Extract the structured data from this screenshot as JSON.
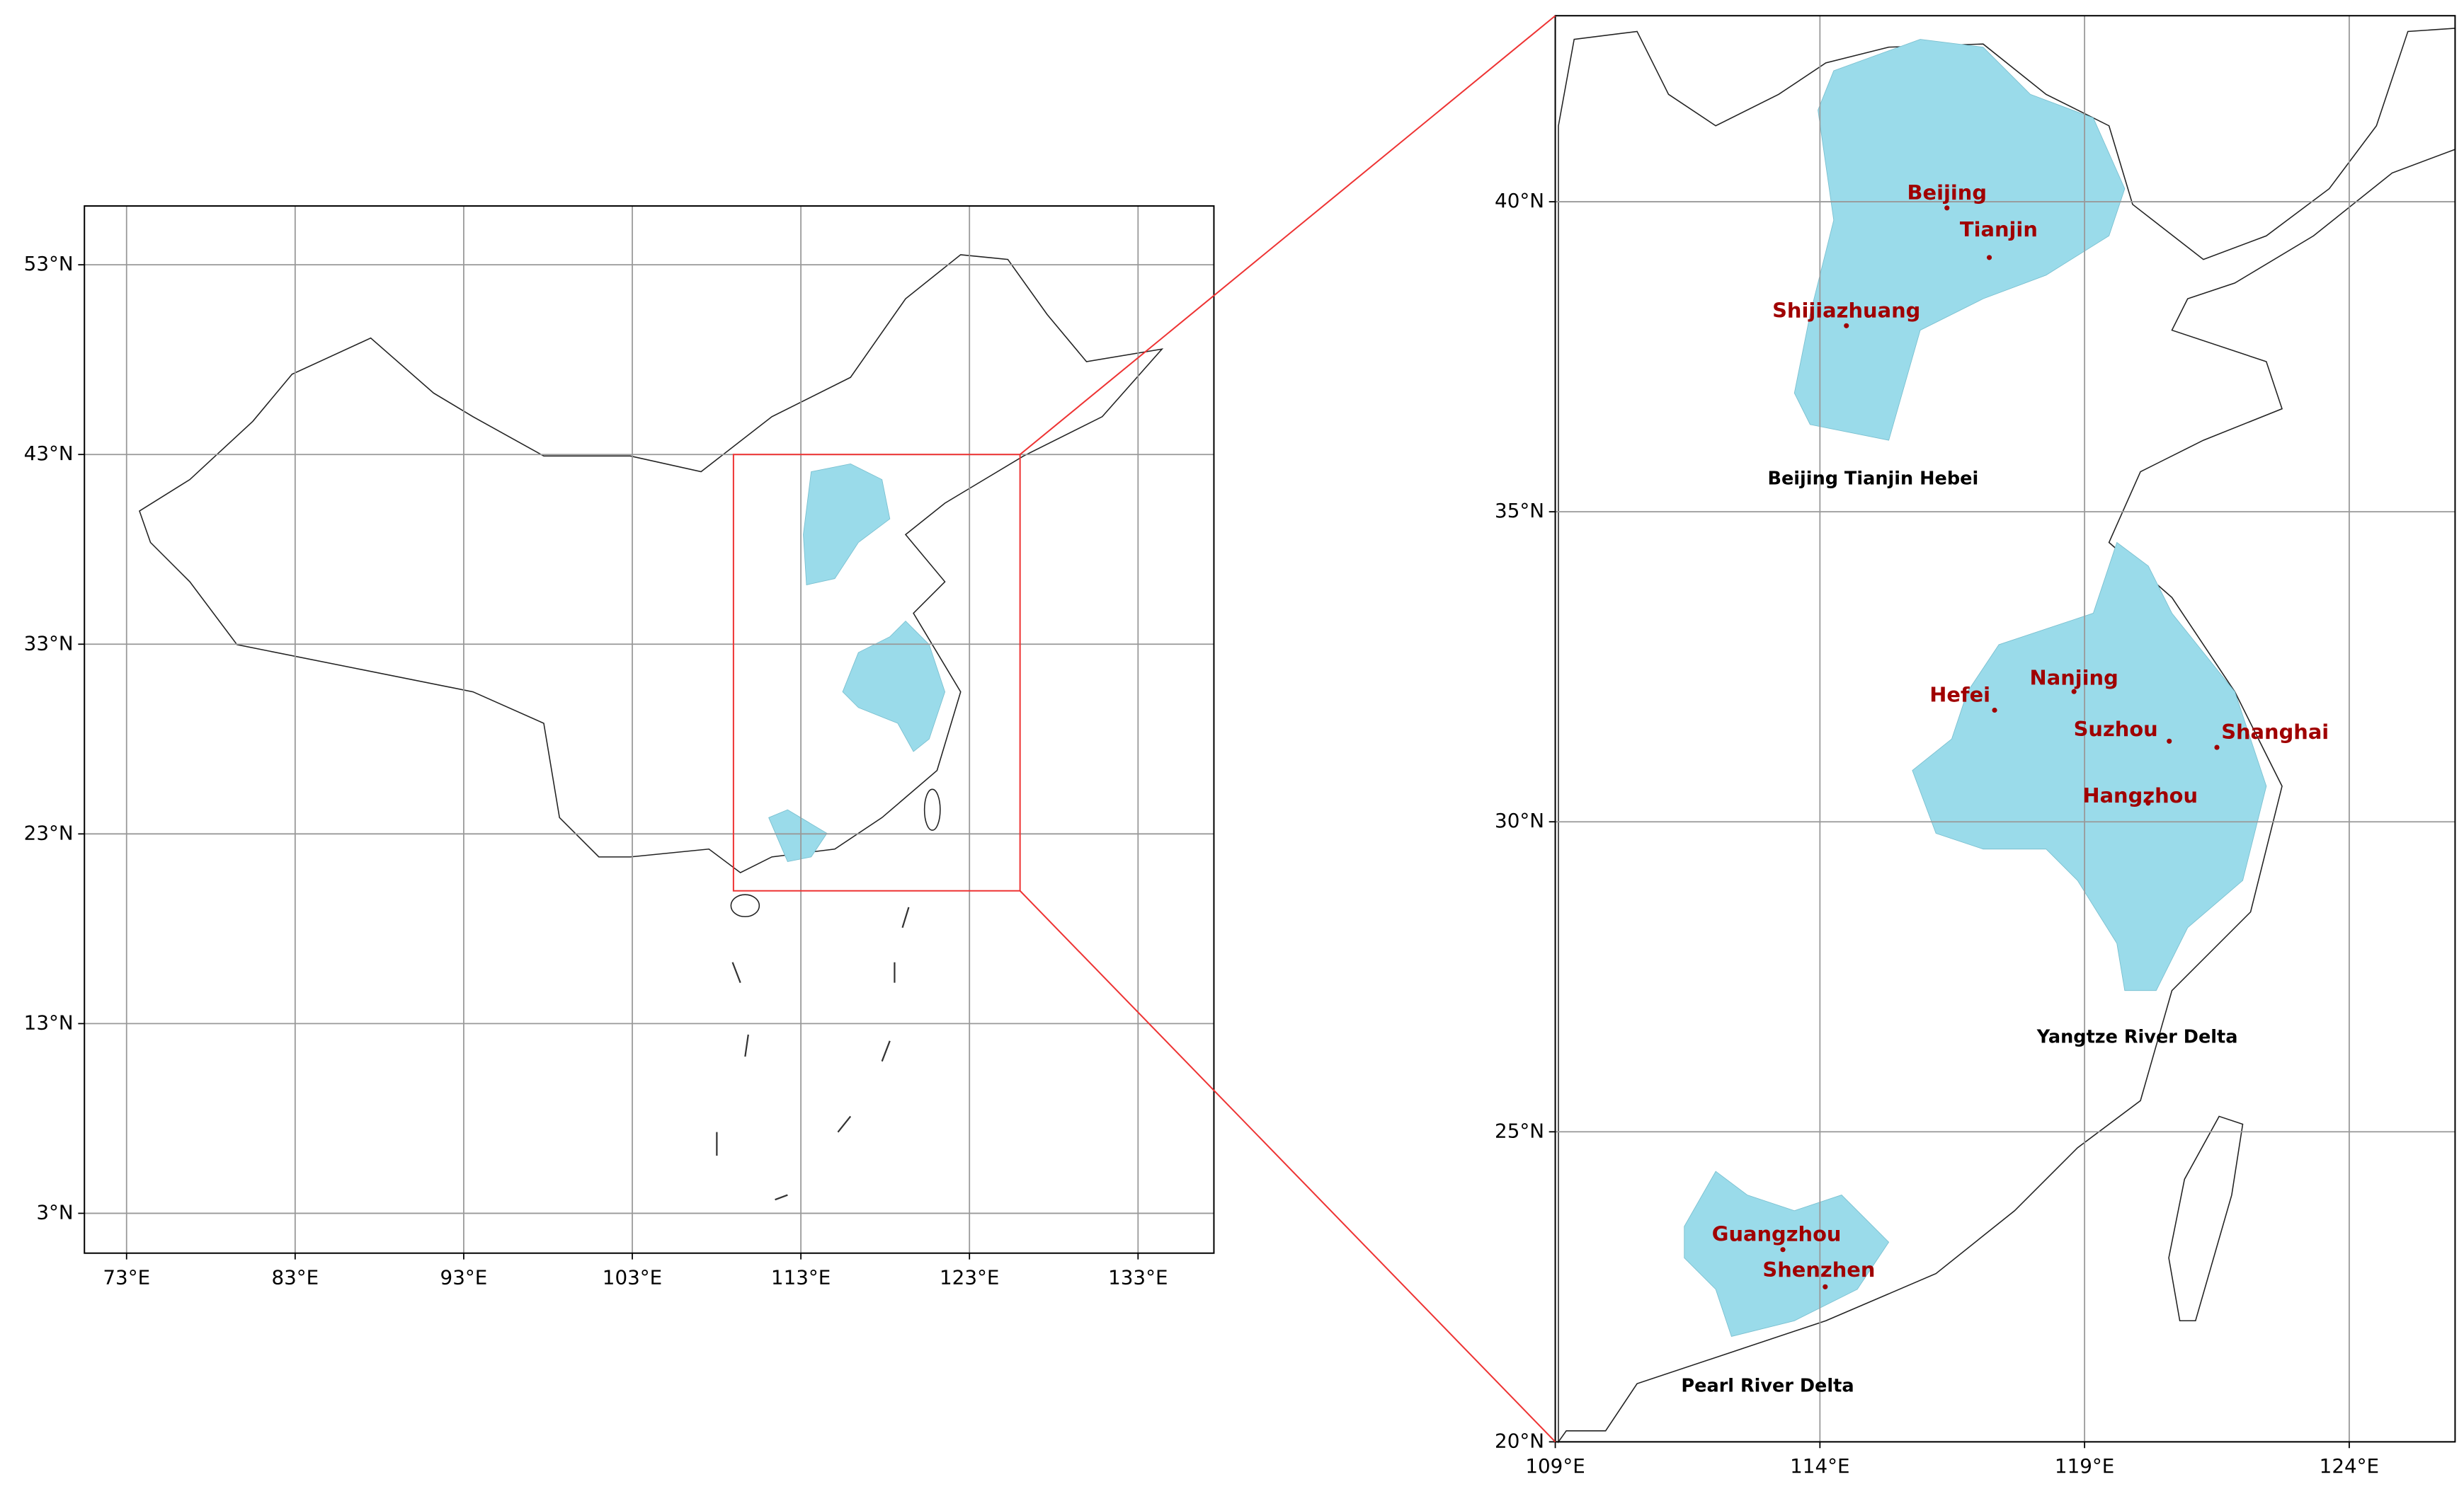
{
  "maps": [
    {
      "xlim": [
        70.5,
        137.5
      ],
      "ylim": [
        0.9,
        56.1
      ],
      "xticks": [
        {
          "value": 73,
          "label": "73°E"
        },
        {
          "value": 83,
          "label": "83°E"
        },
        {
          "value": 93,
          "label": "93°E"
        },
        {
          "value": 103,
          "label": "103°E"
        },
        {
          "value": 113,
          "label": "113°E"
        },
        {
          "value": 123,
          "label": "123°E"
        },
        {
          "value": 133,
          "label": "133°E"
        }
      ],
      "yticks": [
        {
          "value": 3,
          "label": "3°N"
        },
        {
          "value": 13,
          "label": "13°N"
        },
        {
          "value": 23,
          "label": "23°N"
        },
        {
          "value": 33,
          "label": "33°N"
        },
        {
          "value": 43,
          "label": "43°N"
        },
        {
          "value": 53,
          "label": "53°N"
        }
      ]
    },
    {
      "xlim": [
        109,
        126
      ],
      "ylim": [
        20,
        43
      ],
      "xticks": [
        {
          "value": 109,
          "label": "109°E"
        },
        {
          "value": 114,
          "label": "114°E"
        },
        {
          "value": 119,
          "label": "119°E"
        },
        {
          "value": 124,
          "label": "124°E"
        }
      ],
      "yticks": [
        {
          "value": 20,
          "label": "20°N"
        },
        {
          "value": 25,
          "label": "25°N"
        },
        {
          "value": 30,
          "label": "30°N"
        },
        {
          "value": 35,
          "label": "35°N"
        },
        {
          "value": 40,
          "label": "40°N"
        }
      ],
      "cities": [
        {
          "name": "Beijing",
          "lon": 116.4,
          "lat": 39.9
        },
        {
          "name": "Tianjin",
          "lon": 117.2,
          "lat": 39.1
        },
        {
          "name": "Shijiazhuang",
          "lon": 114.5,
          "lat": 38.0
        },
        {
          "name": "Hefei",
          "lon": 117.3,
          "lat": 31.8
        },
        {
          "name": "Nanjing",
          "lon": 118.8,
          "lat": 32.1
        },
        {
          "name": "Suzhou",
          "lon": 120.6,
          "lat": 31.3
        },
        {
          "name": "Shanghai",
          "lon": 121.5,
          "lat": 31.2
        },
        {
          "name": "Hangzhou",
          "lon": 120.2,
          "lat": 30.3
        },
        {
          "name": "Guangzhou",
          "lon": 113.3,
          "lat": 23.1
        },
        {
          "name": "Shenzhen",
          "lon": 114.1,
          "lat": 22.5
        }
      ],
      "regions": [
        "Beijing Tianjin Hebei",
        "Yangtze River Delta",
        "Pearl River Delta"
      ]
    }
  ]
}
